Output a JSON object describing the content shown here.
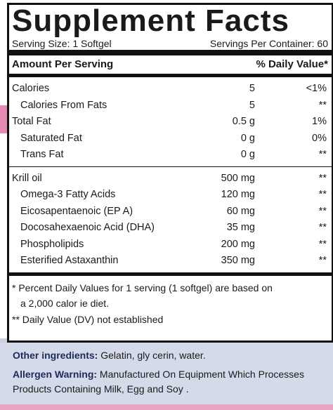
{
  "title": "Supplement Facts",
  "serving_size": "Serving Size: 1 Softgel",
  "servings_per_container": "Servings Per Container: 60",
  "header": {
    "amount": "Amount Per Serving",
    "dv": "% Daily Value*"
  },
  "sections": [
    {
      "rows": [
        {
          "name": "Calories",
          "amount": "5",
          "dv": "<1%",
          "sub": [
            {
              "name": "Calories From Fats",
              "amount": "5",
              "dv": "**"
            }
          ]
        },
        {
          "name": "Total Fat",
          "amount": "0.5 g",
          "dv": "1%",
          "sub": [
            {
              "name": "Saturated Fat",
              "amount": "0 g",
              "dv": "0%"
            },
            {
              "name": "Trans Fat",
              "amount": "0 g",
              "dv": "**"
            }
          ]
        }
      ]
    },
    {
      "rows": [
        {
          "name": "Krill oil",
          "amount": "500 mg",
          "dv": "**",
          "sub": [
            {
              "name": "Omega-3 Fatty Acids",
              "amount": "120 mg",
              "dv": "**"
            },
            {
              "name": "Eicosapentaenoic (EP A)",
              "amount": "60 mg",
              "dv": "**"
            },
            {
              "name": "Docosahexaenoic Acid (DHA)",
              "amount": "35 mg",
              "dv": "**"
            },
            {
              "name": "Phospholipids",
              "amount": "200 mg",
              "dv": "**"
            },
            {
              "name": "Esterified Astaxanthin",
              "amount": "350 mg",
              "dv": "**"
            }
          ]
        }
      ]
    }
  ],
  "footnotes": [
    {
      "lines": [
        "* Percent Daily Values for 1 serving (1 softgel) are based on",
        "a 2,000 calor ie diet."
      ]
    },
    {
      "lines": [
        "** Daily Value (DV) not established"
      ]
    }
  ],
  "other_ingredients": {
    "label": "Other ingredients:",
    "text": " Gelatin, gly cerin, water."
  },
  "allergen": {
    "label": "Allergen Warning:",
    "text": " Manufactured On Equipment Which Processes Products Containing Milk, Egg and Soy ."
  }
}
